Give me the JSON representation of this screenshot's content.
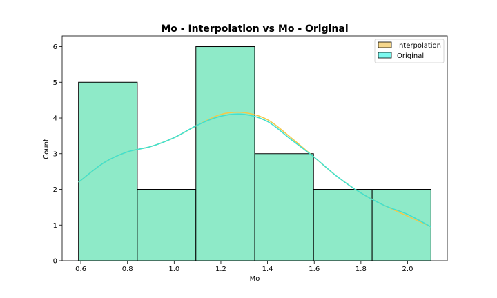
{
  "chart_data": {
    "type": "histogram",
    "title": "Mo - Interpolation vs Mo - Original",
    "xlabel": "Mo",
    "ylabel": "Count",
    "xlim": [
      0.52,
      2.17
    ],
    "ylim": [
      0,
      6.3
    ],
    "xticks": [
      "0.6",
      "0.8",
      "1.0",
      "1.2",
      "1.4",
      "1.6",
      "1.8",
      "2.0"
    ],
    "xtick_values": [
      0.6,
      0.8,
      1.0,
      1.2,
      1.4,
      1.6,
      1.8,
      2.0
    ],
    "yticks": [
      "0",
      "1",
      "2",
      "3",
      "4",
      "5",
      "6"
    ],
    "ytick_values": [
      0,
      1,
      2,
      3,
      4,
      5,
      6
    ],
    "bin_edges": [
      0.59,
      0.842,
      1.093,
      1.345,
      1.597,
      1.848,
      2.1
    ],
    "series": [
      {
        "name": "Interpolation",
        "color": "#f6d78c",
        "counts": [
          5,
          2,
          6,
          3,
          2,
          2
        ],
        "kde_color": "#f2c94c",
        "kde": {
          "x": [
            0.59,
            0.7,
            0.8,
            0.9,
            1.0,
            1.1,
            1.2,
            1.3,
            1.4,
            1.5,
            1.6,
            1.7,
            1.8,
            1.9,
            2.0,
            2.1
          ],
          "y": [
            2.2,
            2.75,
            3.05,
            3.2,
            3.45,
            3.8,
            4.1,
            4.15,
            3.95,
            3.45,
            2.9,
            2.35,
            1.9,
            1.55,
            1.25,
            0.95
          ]
        }
      },
      {
        "name": "Original",
        "color": "#7df9ef",
        "counts": [
          5,
          2,
          6,
          3,
          2,
          2
        ],
        "kde_color": "#40e0d0",
        "kde": {
          "x": [
            0.59,
            0.7,
            0.8,
            0.9,
            1.0,
            1.1,
            1.2,
            1.3,
            1.4,
            1.5,
            1.6,
            1.7,
            1.8,
            1.9,
            2.0,
            2.1
          ],
          "y": [
            2.2,
            2.75,
            3.05,
            3.2,
            3.45,
            3.8,
            4.05,
            4.1,
            3.9,
            3.4,
            2.9,
            2.35,
            1.9,
            1.55,
            1.3,
            0.95
          ]
        }
      }
    ],
    "overlap_color": "#8eeac8",
    "legend": "top-right"
  }
}
